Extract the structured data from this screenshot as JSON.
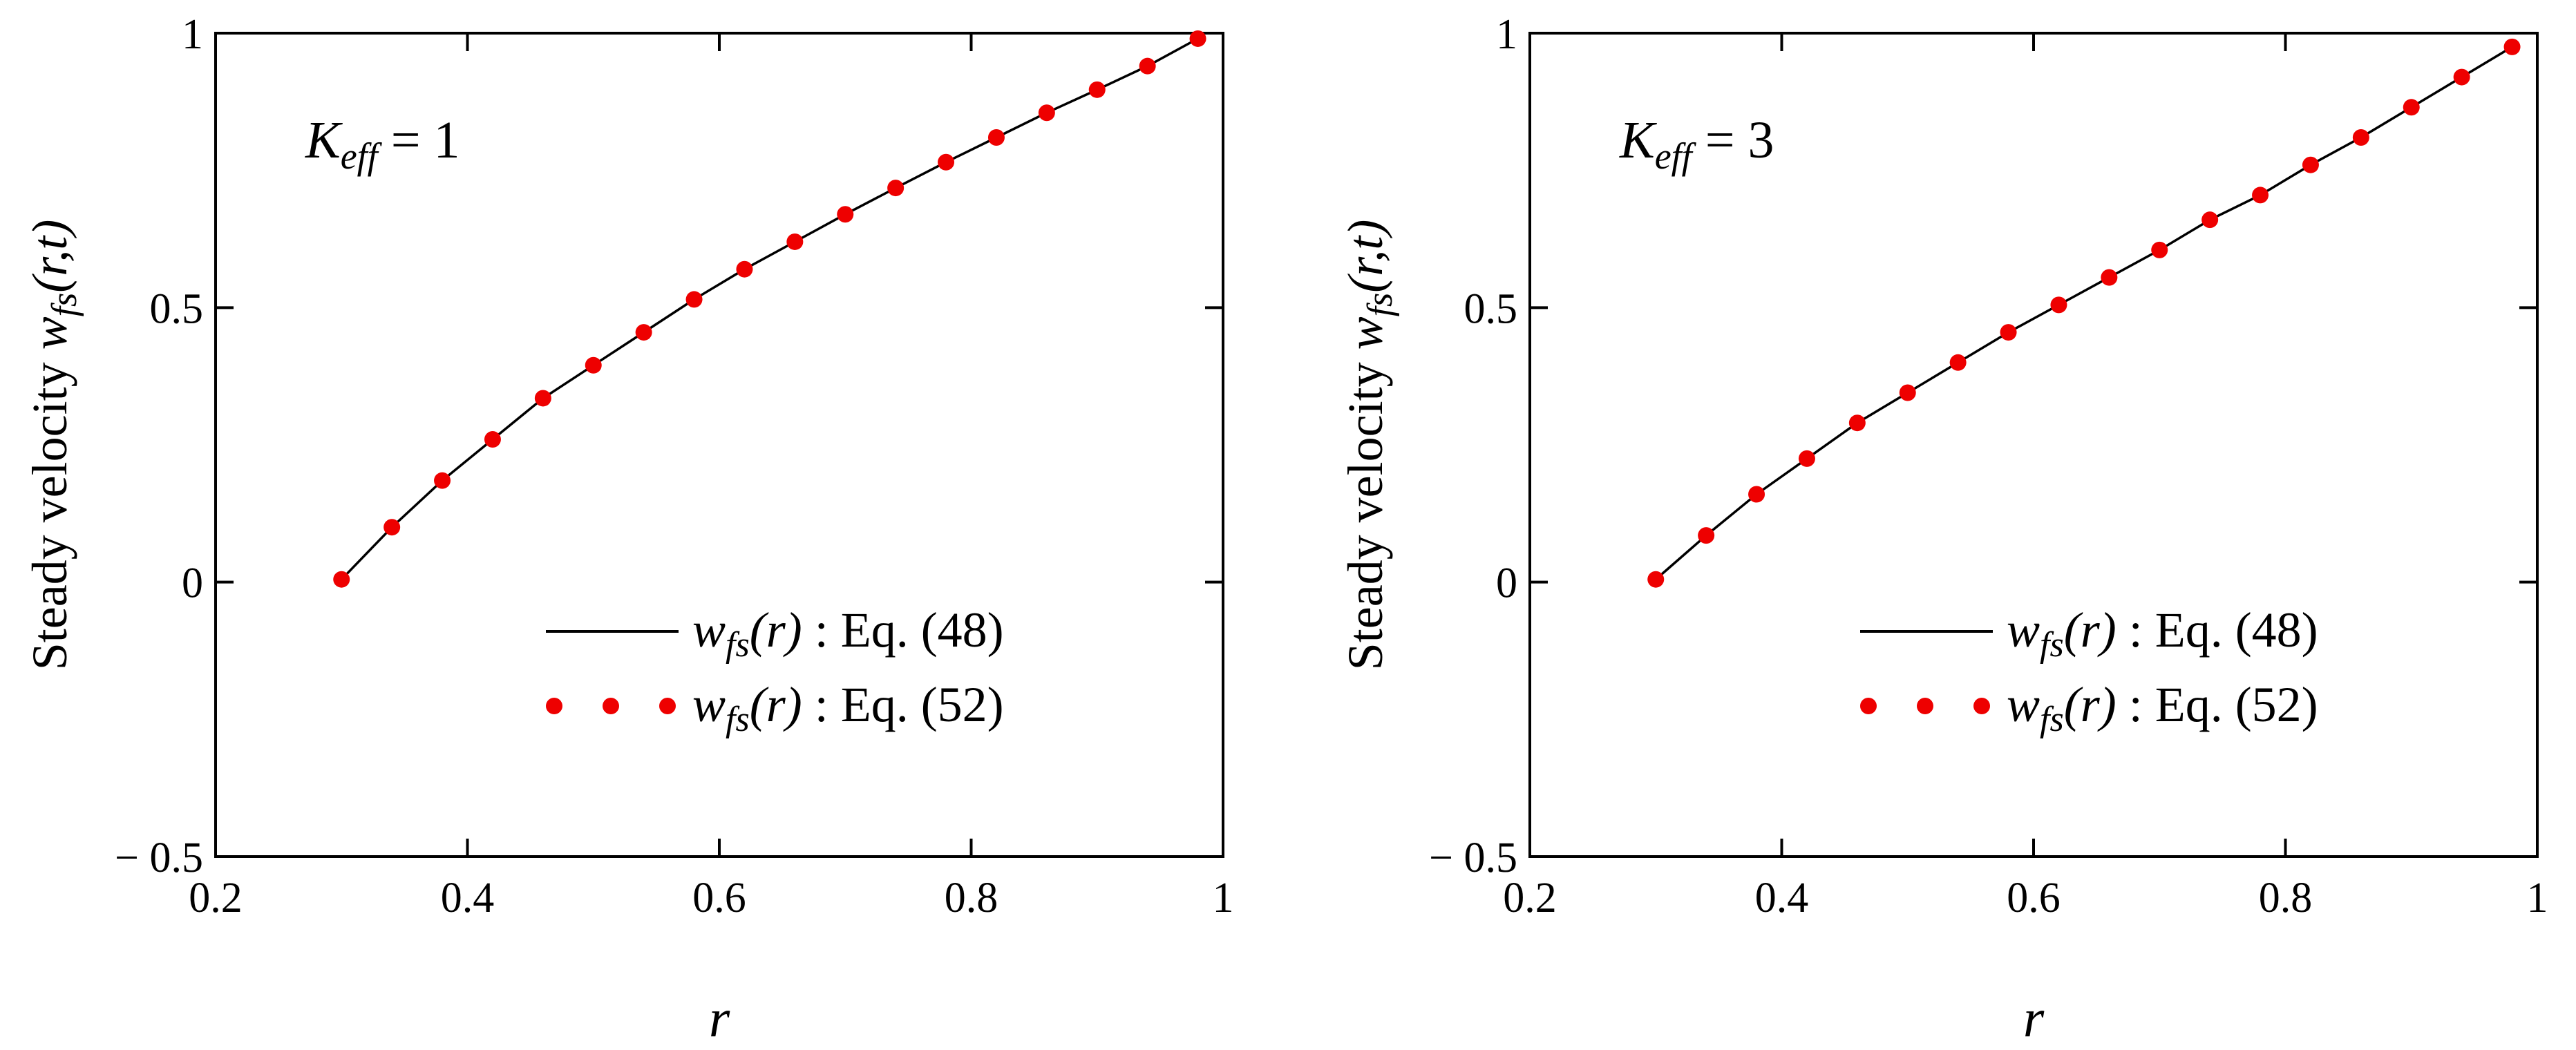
{
  "chart_data": [
    {
      "type": "line",
      "annotation": {
        "symbol": "K",
        "subscript": "eff",
        "rest": " = 1"
      },
      "ylabel": {
        "text": "Steady velocity ",
        "func": "w",
        "sub": "fs",
        "args": "(r,t)"
      },
      "xlabel": "r",
      "xlim": [
        0.2,
        1
      ],
      "ylim": [
        -0.5,
        1
      ],
      "xticks": [
        0.2,
        0.4,
        0.6,
        0.8,
        1
      ],
      "xtick_labels": [
        "0.2",
        "0.4",
        "0.6",
        "0.8",
        "1"
      ],
      "yticks": [
        -0.5,
        0,
        0.5,
        1
      ],
      "ytick_labels": [
        "− 0.5",
        "0",
        "0.5",
        "1"
      ],
      "legend": {
        "position": "bottom-right",
        "entries": [
          {
            "func": "w",
            "sub": "fs",
            "args": "(r)",
            "eq": " : Eq. (48)",
            "style": "line"
          },
          {
            "func": "w",
            "sub": "fs",
            "args": "(r)",
            "eq": " : Eq. (52)",
            "style": "dots"
          }
        ]
      },
      "series": [
        {
          "name": "Eq. (48)",
          "style": "line",
          "color": "#000000",
          "x": [
            0.3,
            0.34,
            0.38,
            0.42,
            0.46,
            0.5,
            0.54,
            0.58,
            0.62,
            0.66,
            0.7,
            0.74,
            0.78,
            0.82,
            0.86,
            0.9,
            0.94,
            0.98
          ],
          "y": [
            0.005,
            0.1,
            0.185,
            0.26,
            0.335,
            0.395,
            0.455,
            0.515,
            0.57,
            0.62,
            0.67,
            0.718,
            0.765,
            0.81,
            0.855,
            0.897,
            0.94,
            0.99
          ]
        },
        {
          "name": "Eq. (52)",
          "style": "dots",
          "color": "#ee0000",
          "x": [
            0.3,
            0.34,
            0.38,
            0.42,
            0.46,
            0.5,
            0.54,
            0.58,
            0.62,
            0.66,
            0.7,
            0.74,
            0.78,
            0.82,
            0.86,
            0.9,
            0.94,
            0.98
          ],
          "y": [
            0.005,
            0.1,
            0.185,
            0.26,
            0.335,
            0.395,
            0.455,
            0.515,
            0.57,
            0.62,
            0.67,
            0.718,
            0.765,
            0.81,
            0.855,
            0.897,
            0.94,
            0.99
          ]
        }
      ]
    },
    {
      "type": "line",
      "annotation": {
        "symbol": "K",
        "subscript": "eff",
        "rest": " = 3"
      },
      "ylabel": {
        "text": "Steady velocity ",
        "func": "w",
        "sub": "fs",
        "args": "(r,t)"
      },
      "xlabel": "r",
      "xlim": [
        0.2,
        1
      ],
      "ylim": [
        -0.5,
        1
      ],
      "xticks": [
        0.2,
        0.4,
        0.6,
        0.8,
        1
      ],
      "xtick_labels": [
        "0.2",
        "0.4",
        "0.6",
        "0.8",
        "1"
      ],
      "yticks": [
        -0.5,
        0,
        0.5,
        1
      ],
      "ytick_labels": [
        "− 0.5",
        "0",
        "0.5",
        "1"
      ],
      "legend": {
        "position": "bottom-right",
        "entries": [
          {
            "func": "w",
            "sub": "fs",
            "args": "(r)",
            "eq": " : Eq. (48)",
            "style": "line"
          },
          {
            "func": "w",
            "sub": "fs",
            "args": "(r)",
            "eq": " : Eq. (52)",
            "style": "dots"
          }
        ]
      },
      "series": [
        {
          "name": "Eq. (48)",
          "style": "line",
          "color": "#000000",
          "x": [
            0.3,
            0.34,
            0.38,
            0.42,
            0.46,
            0.5,
            0.54,
            0.58,
            0.62,
            0.66,
            0.7,
            0.74,
            0.78,
            0.82,
            0.86,
            0.9,
            0.94,
            0.98
          ],
          "y": [
            0.005,
            0.085,
            0.16,
            0.225,
            0.29,
            0.345,
            0.4,
            0.455,
            0.505,
            0.555,
            0.605,
            0.66,
            0.705,
            0.76,
            0.81,
            0.865,
            0.92,
            0.975
          ]
        },
        {
          "name": "Eq. (52)",
          "style": "dots",
          "color": "#ee0000",
          "x": [
            0.3,
            0.34,
            0.38,
            0.42,
            0.46,
            0.5,
            0.54,
            0.58,
            0.62,
            0.66,
            0.7,
            0.74,
            0.78,
            0.82,
            0.86,
            0.9,
            0.94,
            0.98
          ],
          "y": [
            0.005,
            0.085,
            0.16,
            0.225,
            0.29,
            0.345,
            0.4,
            0.455,
            0.505,
            0.555,
            0.605,
            0.66,
            0.705,
            0.76,
            0.81,
            0.865,
            0.92,
            0.975
          ]
        }
      ]
    }
  ]
}
